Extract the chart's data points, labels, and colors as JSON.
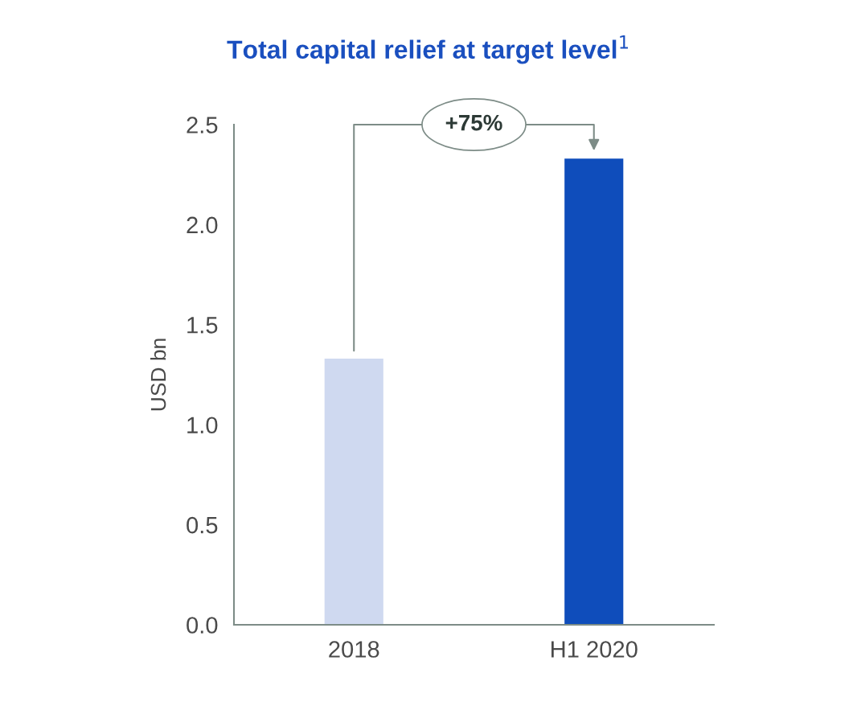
{
  "chart_data": {
    "type": "bar",
    "title": "Total capital relief at target level$^{1}$",
    "ylabel": "USD bn",
    "categories": [
      "2018",
      "H1 2020"
    ],
    "values": [
      1.33,
      2.33
    ],
    "colors": [
      "#cfd9f0",
      "#0f4dbb"
    ],
    "ylim": [
      0,
      2.5
    ],
    "yticks": [
      {
        "value": 0,
        "label": "0.0"
      },
      {
        "value": 0.5,
        "label": "0.5"
      },
      {
        "value": 1,
        "label": "1.0"
      },
      {
        "value": 1.5,
        "label": "1.5"
      },
      {
        "value": 2,
        "label": "2.0"
      },
      {
        "value": 2.5,
        "label": "2.5"
      }
    ],
    "annotations": [
      "+75%"
    ],
    "grid": false,
    "legend": false
  }
}
